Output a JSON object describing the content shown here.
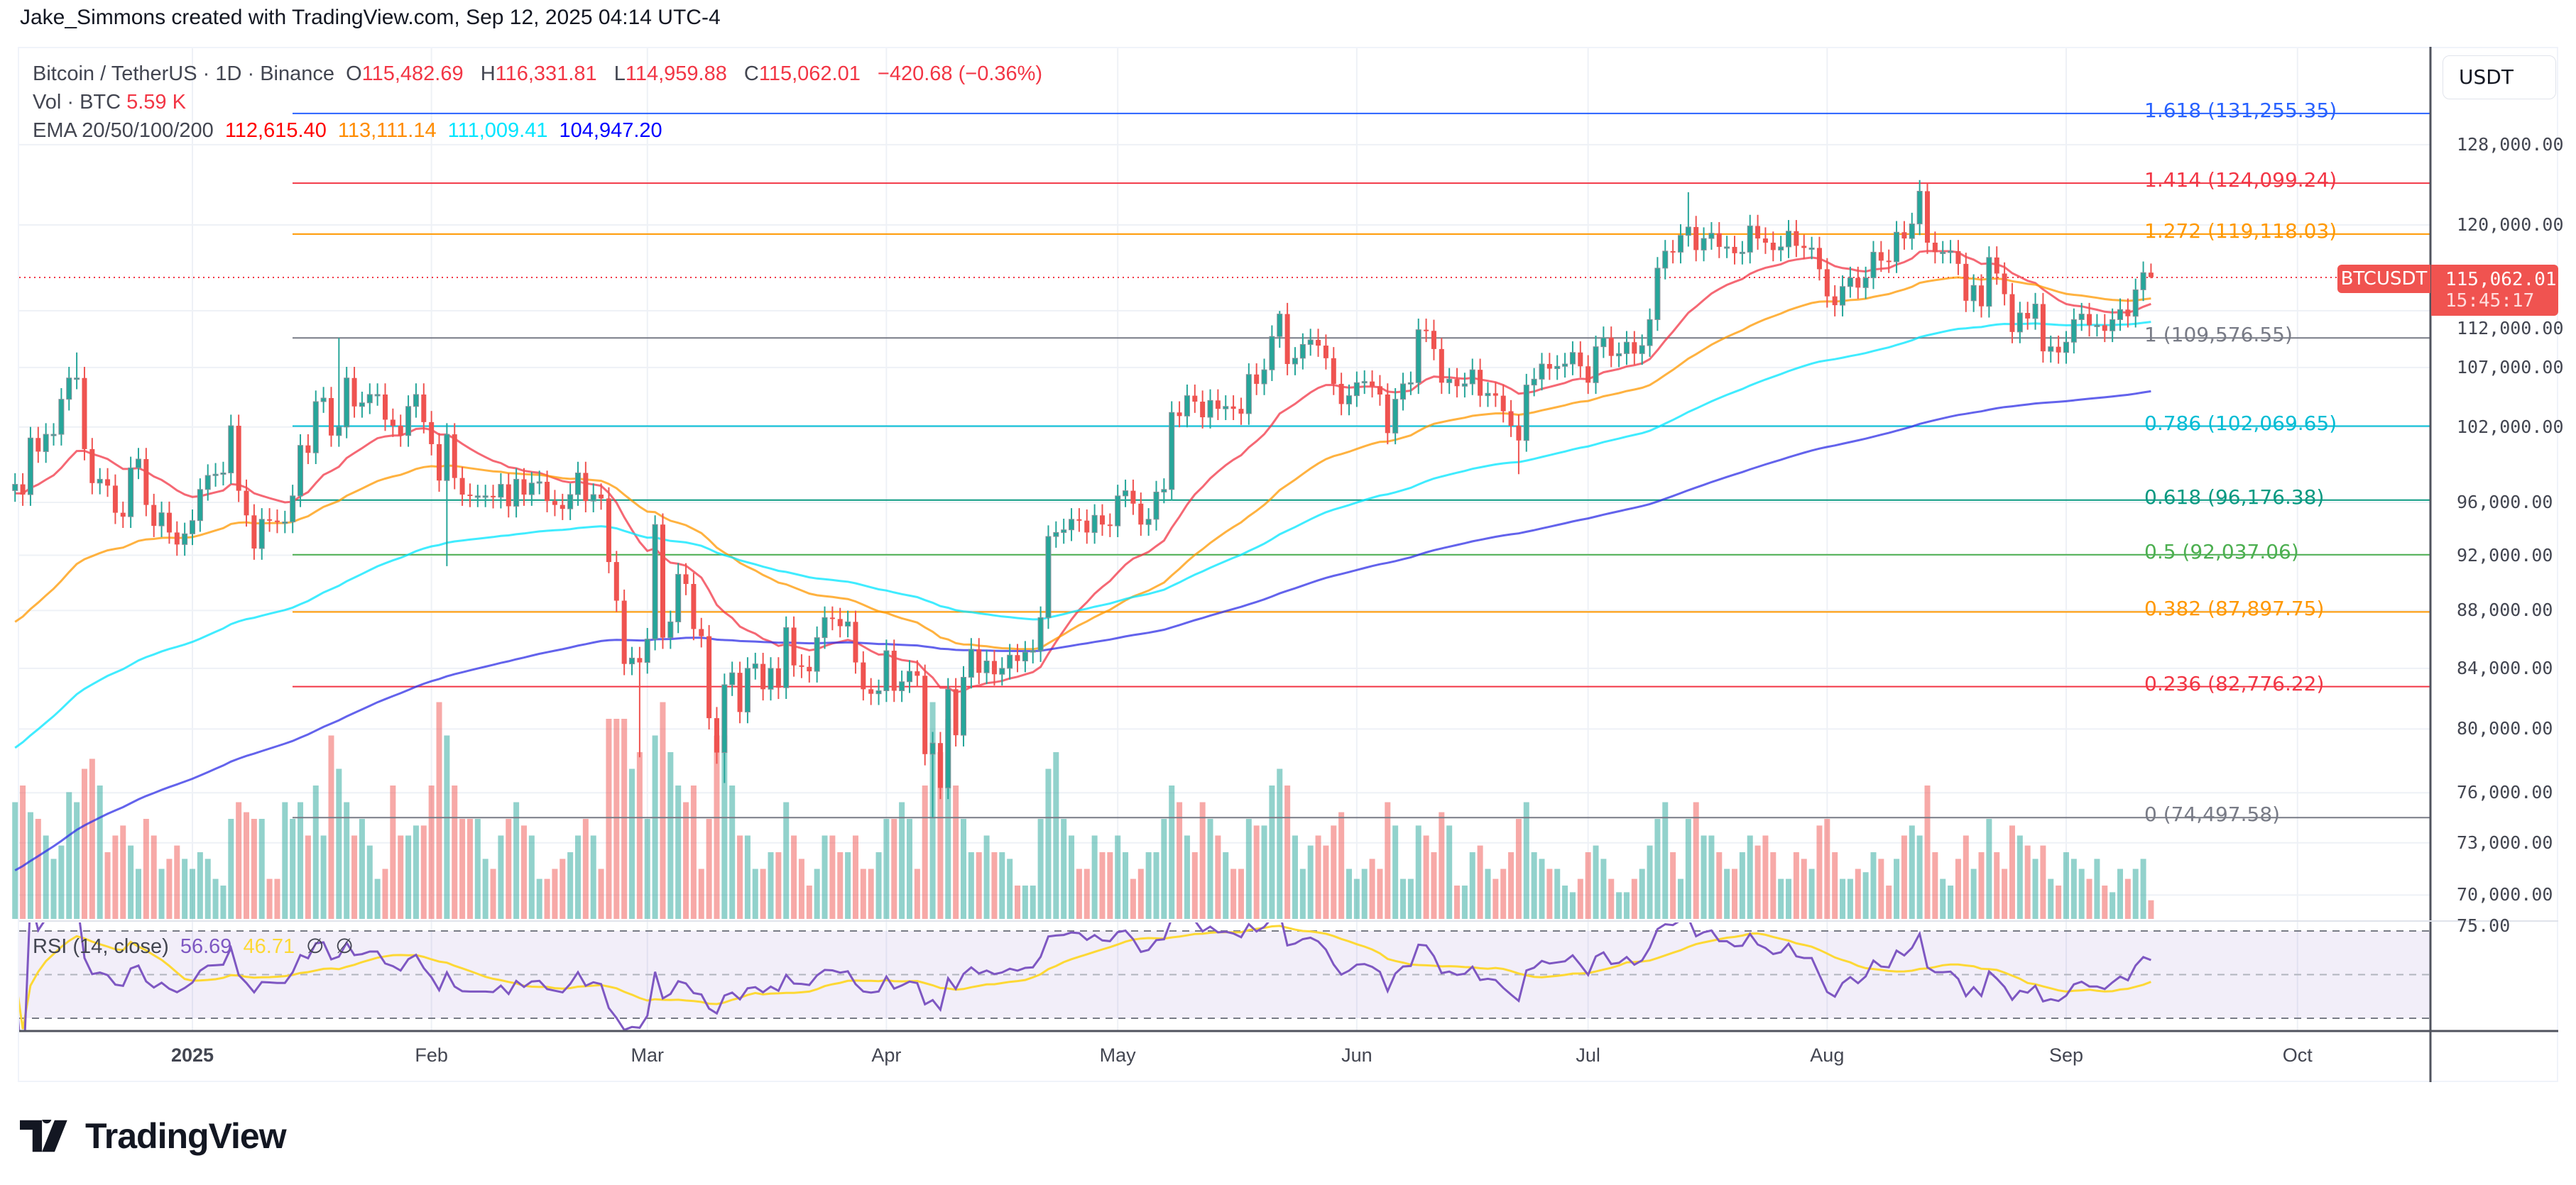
{
  "attribution": "Jake_Simmons created with TradingView.com, Sep 12, 2025 04:14 UTC-4",
  "legend": {
    "symbol": "Bitcoin / TetherUS · 1D · Binance",
    "o_label": "O",
    "o": "115,482.69",
    "h_label": "H",
    "h": "116,331.81",
    "l_label": "L",
    "l": "114,959.88",
    "c_label": "C",
    "c": "115,062.01",
    "change": "−420.68 (−0.36%)",
    "vol_label": "Vol · BTC",
    "vol": "5.59 K",
    "ema_label": "EMA 20/50/100/200",
    "ema20": "112,615.40",
    "ema50": "113,111.14",
    "ema100": "111,009.41",
    "ema200": "104,947.20",
    "rsi_label": "RSI (14, close)",
    "rsi": "56.69",
    "rsi_ma": "46.71",
    "rsi_extra1": "∅",
    "rsi_extra2": "∅"
  },
  "price_axis": {
    "currency": "USDT",
    "ticks": [
      "128,000.00",
      "120,000.00",
      "112,000.00",
      "107,000.00",
      "102,000.00",
      "96,000.00",
      "92,000.00",
      "88,000.00",
      "84,000.00",
      "80,000.00",
      "76,000.00",
      "73,000.00",
      "70,000.00"
    ],
    "rsi_tick": "75.00",
    "last_price_symbol": "BTCUSDT",
    "last_price": "115,062.01",
    "countdown": "15:45:17"
  },
  "time_axis": [
    "2025",
    "Feb",
    "Mar",
    "Apr",
    "May",
    "Jun",
    "Jul",
    "Aug",
    "Sep",
    "Oct"
  ],
  "colors": {
    "up": "#26a69a",
    "down": "#ef5350",
    "ema20": "#f23645",
    "ema50": "#ff9800",
    "ema100": "#00e5ff",
    "ema200": "#2f2fe6",
    "rsi": "#7e57c2",
    "rsi_ma": "#fdd835"
  },
  "fib_levels": [
    {
      "label": "1.618 (131,255.35)",
      "value": 131255.35,
      "color": "#2962ff"
    },
    {
      "label": "1.414 (124,099.24)",
      "value": 124099.24,
      "color": "#f23645"
    },
    {
      "label": "1.272 (119,118.03)",
      "value": 119118.03,
      "color": "#ff9800"
    },
    {
      "label": "1 (109,576.55)",
      "value": 109576.55,
      "color": "#787b86"
    },
    {
      "label": "0.786 (102,069.65)",
      "value": 102069.65,
      "color": "#00bcd4"
    },
    {
      "label": "0.618 (96,176.38)",
      "value": 96176.38,
      "color": "#089981"
    },
    {
      "label": "0.5 (92,037.06)",
      "value": 92037.06,
      "color": "#4caf50"
    },
    {
      "label": "0.382 (87,897.75)",
      "value": 87897.75,
      "color": "#ff9800"
    },
    {
      "label": "0.236 (82,776.22)",
      "value": 82776.22,
      "color": "#f23645"
    },
    {
      "label": "0 (74,497.58)",
      "value": 74497.58,
      "color": "#787b86"
    }
  ],
  "brand": "TradingView",
  "chart_data": {
    "type": "candlestick",
    "symbol": "BTCUSDT",
    "interval": "1D",
    "y_scale": "log",
    "ylim": [
      68500,
      136000
    ],
    "first_date": "2024-12-09",
    "closes": {
      "2024-12": [
        97400,
        96600,
        101100,
        100000,
        101400,
        101400,
        104300,
        106100,
        106100,
        100200,
        97500,
        97800,
        97300,
        95200,
        94900,
        98700,
        99400,
        95800,
        94200,
        95200,
        93700,
        92800,
        93600
      ],
      "2025-01": [
        94600,
        97000,
        98100,
        98200,
        98300,
        102100,
        96900,
        95000,
        92500,
        94700,
        94600,
        94500,
        94500,
        96500,
        100500,
        99900,
        104100,
        104400,
        101300,
        102000,
        106100,
        103700,
        104000,
        104700,
        104700,
        102600,
        102100,
        101300,
        103700,
        104700,
        102400
      ],
      "2025-02": [
        100600,
        97700,
        101400,
        97900,
        96600,
        96500,
        96500,
        96500,
        96400,
        97400,
        95700,
        97800,
        96600,
        97500,
        97600,
        96100,
        95800,
        95500,
        96600,
        98300,
        96100,
        96600,
        96300,
        91500,
        88700,
        84300,
        84700,
        84400
      ],
      "2025-03": [
        86000,
        94300,
        86100,
        87200,
        90600,
        89900,
        86700,
        86200,
        80700,
        78500,
        82900,
        83700,
        81100,
        84000,
        84300,
        82600,
        84000,
        82700,
        86800,
        84200,
        84100,
        83800,
        86100,
        87500,
        87400,
        86900,
        87200,
        84400,
        82600,
        82300,
        82500
      ],
      "2025-04": [
        85200,
        82500,
        83100,
        83800,
        83500,
        78400,
        79100,
        76300,
        82600,
        79600,
        83400,
        85300,
        83700,
        84500,
        83600,
        84000,
        84900,
        84500,
        85100,
        85200,
        87500,
        93400,
        93700,
        93900,
        94700,
        94600,
        93700,
        95000,
        94300,
        94200
      ],
      "2025-05": [
        96500,
        96900,
        95900,
        94300,
        94700,
        96800,
        97000,
        103200,
        102900,
        104600,
        104100,
        102800,
        104200,
        103500,
        103700,
        103500,
        103100,
        106400,
        105600,
        106800,
        109700,
        111700,
        107300,
        107800,
        109000,
        109400,
        108900,
        107800,
        105600,
        103900,
        104600
      ],
      "2025-06": [
        105700,
        105800,
        105400,
        104700,
        101500,
        104300,
        105600,
        105700,
        110300,
        110200,
        108600,
        105700,
        106000,
        105400,
        105600,
        106800,
        104600,
        104800,
        104600,
        103300,
        102100,
        100900,
        105500,
        106000,
        107300,
        106900,
        107100,
        107300,
        108300,
        107100
      ],
      "2025-07": [
        105700,
        108800,
        109600,
        108000,
        108200,
        109200,
        108200,
        108900,
        111200,
        115900,
        117500,
        117400,
        119000,
        119800,
        117600,
        118700,
        119200,
        117900,
        117900,
        117300,
        117400,
        119900,
        118700,
        118300,
        117600,
        117900,
        119400,
        118000,
        117800,
        117800,
        115800
      ],
      "2025-08": [
        113300,
        112500,
        114200,
        115000,
        114100,
        115000,
        117400,
        116600,
        116500,
        119300,
        118700,
        120100,
        123300,
        118300,
        117400,
        117400,
        117500,
        116300,
        112900,
        114300,
        112400,
        116900,
        115400,
        113500,
        110100,
        111800,
        111300,
        112600,
        108400,
        108800,
        108300
      ],
      "2025-09": [
        109200,
        111200,
        111700,
        110700,
        110700,
        110200,
        111200,
        112100,
        111500,
        113900,
        115482.69,
        115062.01
      ]
    },
    "notable_extremes": [
      {
        "date": "2024-12-17",
        "high": 108300
      },
      {
        "date": "2025-01-20",
        "high": 109576.55
      },
      {
        "date": "2025-02-03",
        "low": 91200
      },
      {
        "date": "2025-02-28",
        "low": 78200
      },
      {
        "date": "2025-03-02",
        "high": 95000
      },
      {
        "date": "2025-03-11",
        "low": 76600
      },
      {
        "date": "2025-04-07",
        "low": 74497.58
      },
      {
        "date": "2025-05-22",
        "high": 111980
      },
      {
        "date": "2025-06-22",
        "low": 98200
      },
      {
        "date": "2025-07-14",
        "high": 123200
      },
      {
        "date": "2025-08-14",
        "high": 124099.24
      },
      {
        "date": "2025-09-12",
        "high": 116331.81,
        "low": 114959.88
      }
    ],
    "volume_btc": {
      "2024-12": [
        35000,
        40000,
        32000,
        30000,
        25000,
        18000,
        22000,
        38000,
        35000,
        45000,
        48000,
        40000,
        20000,
        25000,
        28000,
        22000,
        15000,
        30000,
        25000,
        15000,
        18000,
        22000,
        18000
      ],
      "2025-01": [
        15000,
        20000,
        18000,
        12000,
        10000,
        30000,
        35000,
        32000,
        30000,
        30000,
        12000,
        12000,
        35000,
        30000,
        35000,
        25000,
        40000,
        25000,
        55000,
        45000,
        35000,
        25000,
        30000,
        22000,
        12000,
        15000,
        40000,
        25000,
        25000,
        28000,
        28000
      ],
      "2025-02": [
        40000,
        65000,
        55000,
        40000,
        30000,
        30000,
        30000,
        18000,
        15000,
        25000,
        30000,
        35000,
        28000,
        25000,
        12000,
        12000,
        15000,
        18000,
        20000,
        25000,
        30000,
        25000,
        15000,
        60000,
        60000,
        60000,
        45000,
        50000
      ],
      "2025-03": [
        30000,
        55000,
        65000,
        50000,
        40000,
        35000,
        40000,
        15000,
        30000,
        55000,
        55000,
        40000,
        25000,
        25000,
        15000,
        15000,
        20000,
        20000,
        35000,
        25000,
        18000,
        10000,
        15000,
        25000,
        25000,
        20000,
        20000,
        25000,
        15000,
        15000,
        20000
      ],
      "2025-04": [
        30000,
        30000,
        35000,
        30000,
        15000,
        40000,
        65000,
        50000,
        60000,
        40000,
        30000,
        20000,
        20000,
        25000,
        20000,
        20000,
        18000,
        10000,
        10000,
        10000,
        30000,
        45000,
        50000,
        30000,
        25000,
        15000,
        15000,
        25000,
        20000,
        20000
      ],
      "2025-05": [
        25000,
        20000,
        12000,
        15000,
        20000,
        20000,
        30000,
        40000,
        35000,
        25000,
        20000,
        35000,
        30000,
        25000,
        20000,
        15000,
        15000,
        30000,
        28000,
        28000,
        40000,
        45000,
        40000,
        25000,
        15000,
        22000,
        25000,
        22000,
        28000,
        32000,
        15000
      ],
      "2025-06": [
        12000,
        15000,
        18000,
        15000,
        35000,
        28000,
        12000,
        12000,
        28000,
        25000,
        20000,
        32000,
        28000,
        10000,
        10000,
        20000,
        22000,
        15000,
        12000,
        15000,
        20000,
        30000,
        35000,
        20000,
        18000,
        15000,
        15000,
        10000,
        8000,
        12000
      ],
      "2025-07": [
        20000,
        22000,
        18000,
        12000,
        8000,
        8000,
        12000,
        15000,
        22000,
        30000,
        35000,
        20000,
        12000,
        30000,
        35000,
        25000,
        25000,
        20000,
        15000,
        15000,
        20000,
        25000,
        22000,
        25000,
        20000,
        12000,
        12000,
        20000,
        18000,
        15000,
        28000
      ],
      "2025-08": [
        30000,
        20000,
        12000,
        12000,
        15000,
        14000,
        20000,
        18000,
        10000,
        18000,
        25000,
        28000,
        25000,
        40000,
        20000,
        12000,
        10000,
        18000,
        25000,
        15000,
        20000,
        30000,
        20000,
        15000,
        28000,
        25000,
        22000,
        18000,
        22000,
        12000,
        10000
      ],
      "2025-09": [
        20000,
        18000,
        15000,
        12000,
        18000,
        10000,
        8000,
        15000,
        12000,
        15000,
        18000,
        5590
      ]
    },
    "ema_periods": [
      20,
      50,
      100,
      200
    ],
    "ema_at_first_candle": [
      96700,
      87200,
      78800,
      71400
    ],
    "rsi_period": 14,
    "rsi_ma_period": 14,
    "rsi_bands": [
      70,
      50,
      30
    ]
  }
}
